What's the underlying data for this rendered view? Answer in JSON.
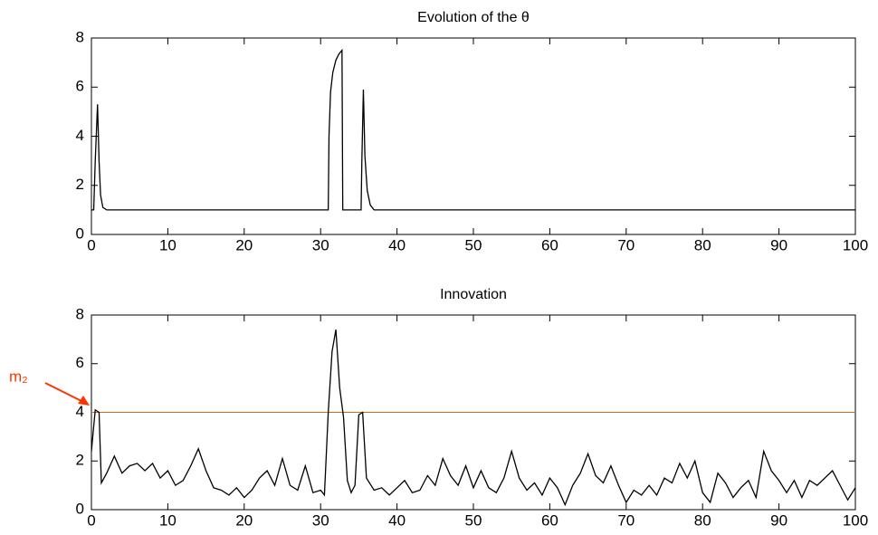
{
  "chart_data": [
    {
      "type": "line",
      "title": "Evolution of the θ",
      "x": [
        0,
        0.3,
        0.5,
        0.8,
        1.0,
        1.2,
        1.5,
        2,
        31,
        31.1,
        31.3,
        31.6,
        32,
        32.4,
        32.8,
        32.9,
        35.3,
        35.4,
        35.6,
        35.8,
        36.1,
        36.5,
        37,
        100
      ],
      "values": [
        1,
        1,
        3,
        5.3,
        3,
        1.6,
        1.1,
        1,
        1,
        4,
        5.8,
        6.6,
        7.1,
        7.35,
        7.5,
        1,
        1,
        3,
        5.9,
        3.2,
        1.8,
        1.2,
        1,
        1
      ],
      "color": "#000000",
      "xlim": [
        0,
        100
      ],
      "xticks": [
        0,
        10,
        20,
        30,
        40,
        50,
        60,
        70,
        80,
        90,
        100
      ],
      "ylim": [
        0,
        8
      ],
      "yticks": [
        0,
        2,
        4,
        6,
        8
      ]
    },
    {
      "type": "line",
      "title": "Innovation",
      "x": [
        0,
        0.5,
        1,
        1.3,
        2,
        3,
        4,
        5,
        6,
        7,
        8,
        9,
        10,
        11,
        12,
        13,
        14,
        15,
        16,
        17,
        18,
        19,
        20,
        21,
        22,
        23,
        24,
        25,
        26,
        27,
        28,
        29,
        30,
        30.5,
        31,
        31.5,
        32,
        32.5,
        33,
        33.5,
        34,
        34.5,
        35,
        35.5,
        36,
        37,
        38,
        39,
        40,
        41,
        42,
        43,
        44,
        45,
        46,
        47,
        48,
        49,
        50,
        51,
        52,
        53,
        54,
        55,
        56,
        57,
        58,
        59,
        60,
        61,
        62,
        63,
        64,
        65,
        66,
        67,
        68,
        69,
        70,
        71,
        72,
        73,
        74,
        75,
        76,
        77,
        78,
        79,
        80,
        81,
        82,
        83,
        84,
        85,
        86,
        87,
        88,
        89,
        90,
        91,
        92,
        93,
        94,
        95,
        96,
        97,
        98,
        99,
        100
      ],
      "values": [
        2.4,
        4.1,
        4.0,
        1.1,
        1.5,
        2.2,
        1.5,
        1.8,
        1.9,
        1.6,
        1.9,
        1.3,
        1.6,
        1.0,
        1.2,
        1.8,
        2.5,
        1.6,
        0.9,
        0.8,
        0.6,
        0.9,
        0.5,
        0.8,
        1.3,
        1.6,
        1.0,
        2.1,
        1.0,
        0.8,
        1.8,
        0.7,
        0.8,
        0.6,
        4.0,
        6.5,
        7.4,
        5.0,
        3.8,
        1.2,
        0.7,
        1.0,
        3.9,
        4.0,
        1.3,
        0.8,
        0.9,
        0.6,
        0.9,
        1.2,
        0.7,
        0.8,
        1.4,
        1.0,
        2.1,
        1.4,
        1.0,
        1.8,
        0.9,
        1.6,
        0.9,
        0.7,
        1.3,
        2.4,
        1.3,
        0.8,
        1.1,
        0.6,
        1.3,
        0.9,
        0.2,
        1.0,
        1.5,
        2.3,
        1.4,
        1.1,
        1.8,
        1.0,
        0.3,
        0.8,
        0.6,
        1.0,
        0.6,
        1.3,
        1.1,
        1.9,
        1.3,
        2.0,
        0.7,
        0.3,
        1.5,
        1.1,
        0.5,
        0.9,
        1.2,
        0.5,
        2.4,
        1.6,
        1.2,
        0.7,
        1.2,
        0.5,
        1.2,
        1.0,
        1.3,
        1.6,
        1.0,
        0.4,
        0.9
      ],
      "color": "#000000",
      "reference_line": {
        "value": 4,
        "color": "#d2691e"
      },
      "annotation": "m₂",
      "annotation_color": "#ff3300",
      "xlim": [
        0,
        100
      ],
      "xticks": [
        0,
        10,
        20,
        30,
        40,
        50,
        60,
        70,
        80,
        90,
        100
      ],
      "ylim": [
        0,
        8
      ],
      "yticks": [
        0,
        2,
        4,
        6,
        8
      ]
    }
  ]
}
